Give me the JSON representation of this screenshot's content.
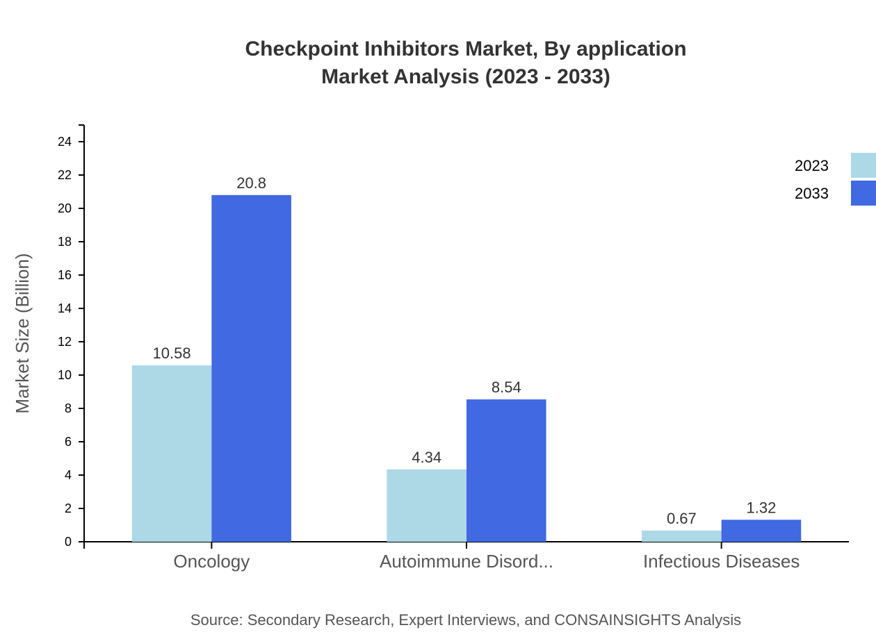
{
  "chart_data": {
    "type": "bar",
    "title": [
      "Checkpoint Inhibitors Market, By application",
      "Market Analysis (2023 - 2033)"
    ],
    "categories": [
      "Oncology",
      "Autoimmune Disord...",
      "Infectious Diseases"
    ],
    "series": [
      {
        "name": "2023",
        "color": "#add8e6",
        "values": [
          10.58,
          4.34,
          0.67
        ]
      },
      {
        "name": "2033",
        "color": "#4169e1",
        "values": [
          20.8,
          8.54,
          1.32
        ]
      }
    ],
    "data_labels": [
      [
        "10.58",
        "4.34",
        "0.67"
      ],
      [
        "20.8",
        "8.54",
        "1.32"
      ]
    ],
    "xlabel": "",
    "ylabel": "Market Size (Billion)",
    "ylim": [
      0,
      25
    ],
    "yticks": [
      0,
      2,
      4,
      6,
      8,
      10,
      12,
      14,
      16,
      18,
      20,
      22,
      24
    ],
    "grid": false,
    "legend": "top-right",
    "source": "Source: Secondary Research, Expert Interviews, and CONSAINSIGHTS Analysis"
  }
}
